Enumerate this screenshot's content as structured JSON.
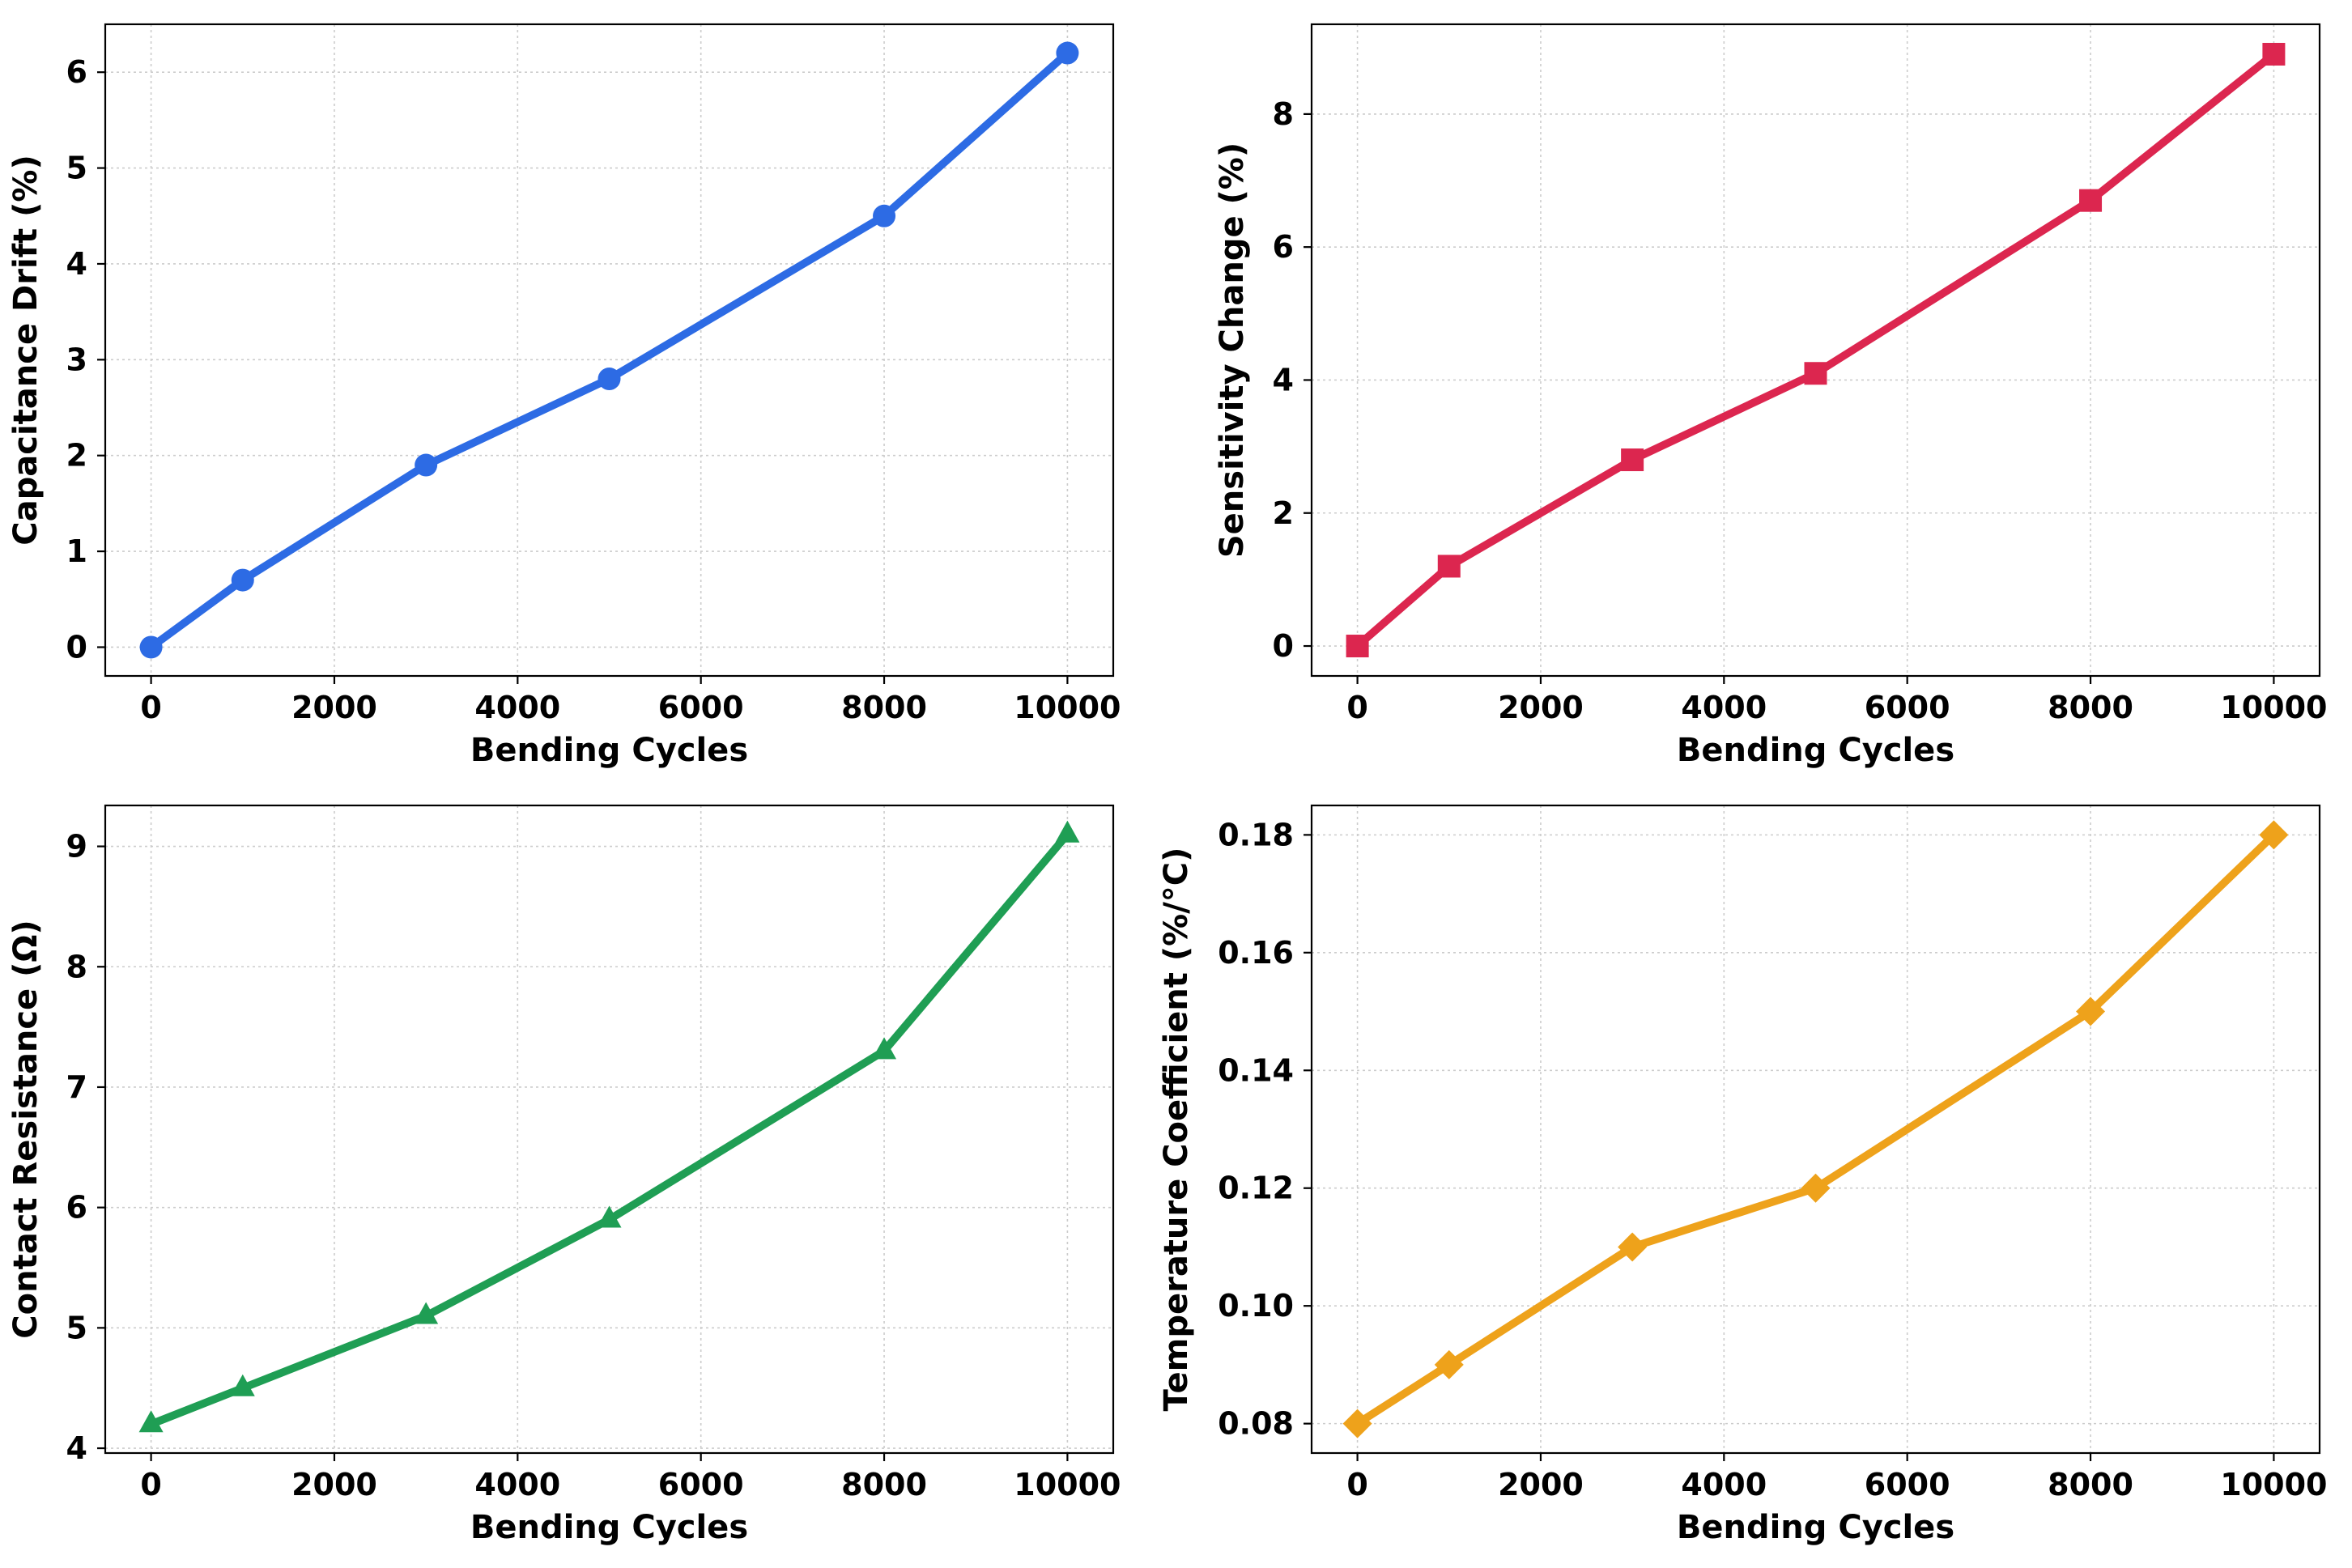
{
  "chart_data": [
    {
      "type": "line",
      "xlabel": "Bending Cycles",
      "ylabel": "Capacitance Drift (%)",
      "x": [
        0,
        1000,
        3000,
        5000,
        8000,
        10000
      ],
      "series": [
        {
          "values": [
            0,
            0.7,
            1.9,
            2.8,
            4.5,
            6.2
          ],
          "color": "#2d6be4",
          "marker": "circle"
        }
      ],
      "xlim": [
        -500,
        10500
      ],
      "ylim": [
        -0.3,
        6.5
      ],
      "xticks": [
        0,
        2000,
        4000,
        6000,
        8000,
        10000
      ],
      "xtick_labels": [
        "0",
        "2000",
        "4000",
        "6000",
        "8000",
        "10000"
      ],
      "yticks": [
        0,
        1,
        2,
        3,
        4,
        5,
        6
      ],
      "ytick_labels": [
        "0",
        "1",
        "2",
        "3",
        "4",
        "5",
        "6"
      ],
      "grid": true
    },
    {
      "type": "line",
      "xlabel": "Bending Cycles",
      "ylabel": "Sensitivity Change (%)",
      "x": [
        0,
        1000,
        3000,
        5000,
        8000,
        10000
      ],
      "series": [
        {
          "values": [
            0,
            1.2,
            2.8,
            4.1,
            6.7,
            8.9
          ],
          "color": "#dc264f",
          "marker": "square"
        }
      ],
      "xlim": [
        -500,
        10500
      ],
      "ylim": [
        -0.45,
        9.35
      ],
      "xticks": [
        0,
        2000,
        4000,
        6000,
        8000,
        10000
      ],
      "xtick_labels": [
        "0",
        "2000",
        "4000",
        "6000",
        "8000",
        "10000"
      ],
      "yticks": [
        0,
        2,
        4,
        6,
        8
      ],
      "ytick_labels": [
        "0",
        "2",
        "4",
        "6",
        "8"
      ],
      "grid": true
    },
    {
      "type": "line",
      "xlabel": "Bending Cycles",
      "ylabel": "Contact Resistance (Ω)",
      "x": [
        0,
        1000,
        3000,
        5000,
        8000,
        10000
      ],
      "series": [
        {
          "values": [
            4.2,
            4.5,
            5.1,
            5.9,
            7.3,
            9.1
          ],
          "color": "#1f9e54",
          "marker": "triangle"
        }
      ],
      "xlim": [
        -500,
        10500
      ],
      "ylim": [
        3.96,
        9.34
      ],
      "xticks": [
        0,
        2000,
        4000,
        6000,
        8000,
        10000
      ],
      "xtick_labels": [
        "0",
        "2000",
        "4000",
        "6000",
        "8000",
        "10000"
      ],
      "yticks": [
        4,
        5,
        6,
        7,
        8,
        9
      ],
      "ytick_labels": [
        "4",
        "5",
        "6",
        "7",
        "8",
        "9"
      ],
      "grid": true
    },
    {
      "type": "line",
      "xlabel": "Bending Cycles",
      "ylabel": "Temperature Coefficient (%/°C)",
      "x": [
        0,
        1000,
        3000,
        5000,
        8000,
        10000
      ],
      "series": [
        {
          "values": [
            0.08,
            0.09,
            0.11,
            0.12,
            0.15,
            0.18
          ],
          "color": "#eea21b",
          "marker": "diamond"
        }
      ],
      "xlim": [
        -500,
        10500
      ],
      "ylim": [
        0.075,
        0.185
      ],
      "xticks": [
        0,
        2000,
        4000,
        6000,
        8000,
        10000
      ],
      "xtick_labels": [
        "0",
        "2000",
        "4000",
        "6000",
        "8000",
        "10000"
      ],
      "yticks": [
        0.08,
        0.1,
        0.12,
        0.14,
        0.16,
        0.18
      ],
      "ytick_labels": [
        "0.08",
        "0.10",
        "0.12",
        "0.14",
        "0.16",
        "0.18"
      ],
      "grid": true
    }
  ]
}
